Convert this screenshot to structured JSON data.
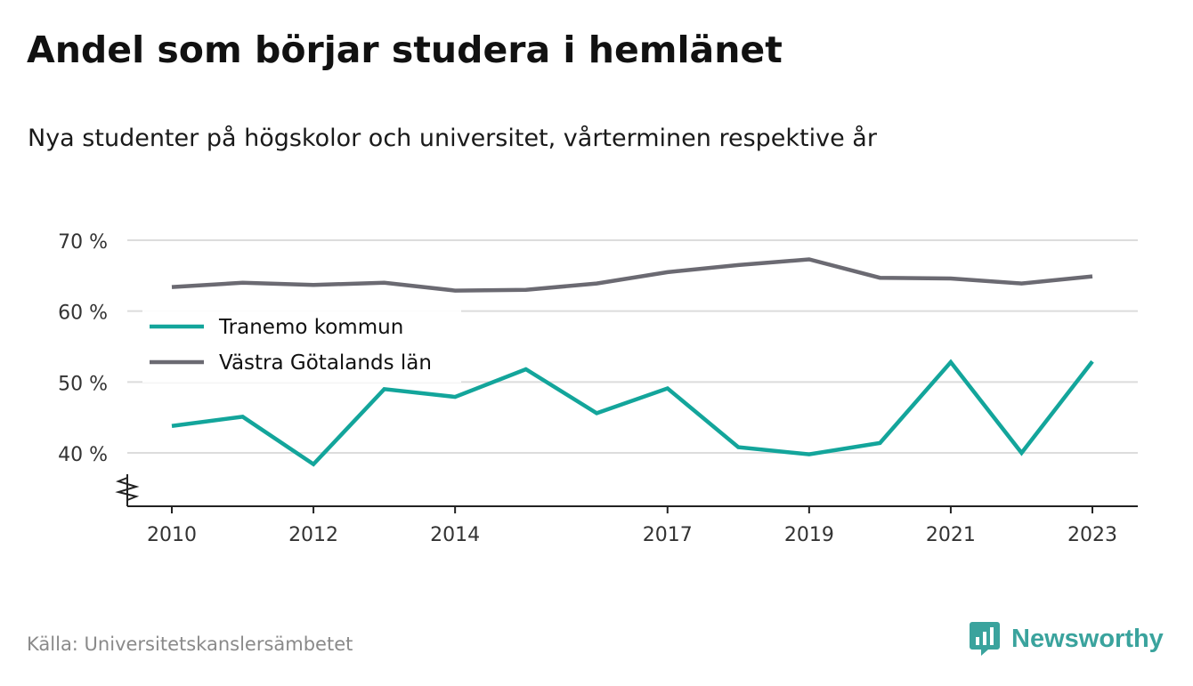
{
  "title": "Andel som börjar studera i hemlänet",
  "subtitle": "Nya studenter på högskolor och universitet, vårterminen respektive år",
  "source": "Källa: Universitetskanslersämbetet",
  "brand": {
    "name": "Newsworthy",
    "icon": "newsworthy-logo-icon",
    "color": "#3aa39d"
  },
  "chart_data": {
    "type": "line",
    "x": [
      2010,
      2011,
      2012,
      2013,
      2014,
      2015,
      2016,
      2017,
      2018,
      2019,
      2020,
      2021,
      2022,
      2023
    ],
    "x_tick_labels": [
      "2010",
      "2012",
      "2014",
      "2017",
      "2019",
      "2021",
      "2023"
    ],
    "y_tick_values": [
      40,
      50,
      60,
      70
    ],
    "y_tick_labels": [
      "40 %",
      "50 %",
      "60 %",
      "70 %"
    ],
    "ylim": [
      33,
      70
    ],
    "y_axis_break": true,
    "grid": true,
    "legend_position": "top-left",
    "series": [
      {
        "name": "Tranemo kommun",
        "color": "#13a59b",
        "values": [
          43.8,
          45.1,
          38.4,
          49.0,
          47.9,
          51.8,
          45.6,
          49.1,
          40.8,
          39.8,
          41.4,
          52.8,
          40.0,
          52.9
        ]
      },
      {
        "name": "Västra Götalands län",
        "color": "#6b6a72",
        "values": [
          63.4,
          64.0,
          63.7,
          64.0,
          62.9,
          63.0,
          63.9,
          65.5,
          66.5,
          67.3,
          64.7,
          64.6,
          63.9,
          64.9
        ]
      }
    ]
  }
}
